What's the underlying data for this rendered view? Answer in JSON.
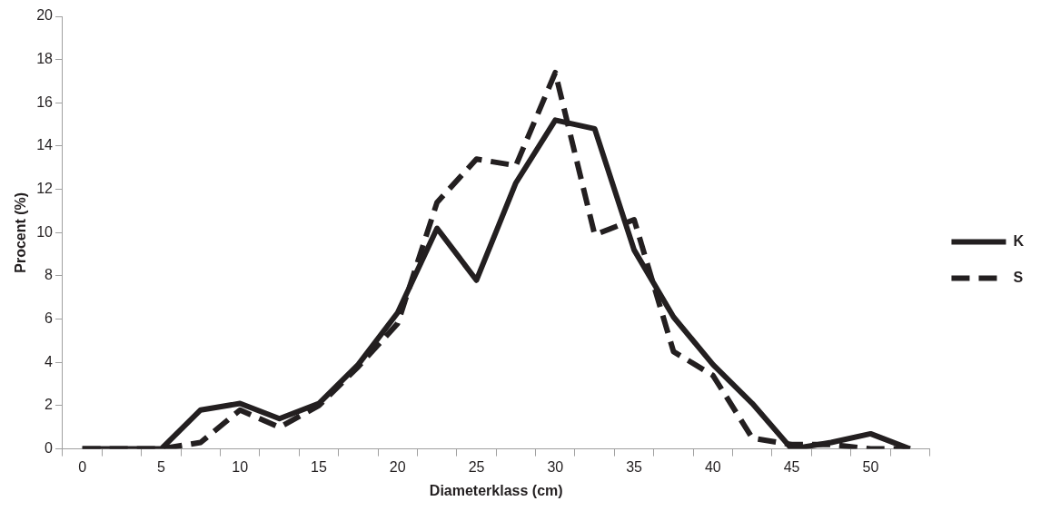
{
  "chart_data": {
    "type": "line",
    "xlabel": "Diameterklass (cm)",
    "ylabel": "Procent (%)",
    "categories": [
      "0",
      null,
      "5",
      null,
      "10",
      null,
      "15",
      null,
      "20",
      null,
      "25",
      null,
      "30",
      null,
      "35",
      null,
      "40",
      null,
      "45",
      null,
      "50",
      null
    ],
    "series": [
      {
        "name": "K",
        "color": "#231f20",
        "line_style": "solid",
        "values": [
          0,
          0,
          0,
          1.8,
          2.1,
          1.4,
          2.1,
          3.9,
          6.3,
          10.2,
          7.8,
          12.3,
          15.2,
          14.8,
          9.2,
          6.1,
          3.9,
          2.1,
          0,
          0.3,
          0.7,
          0
        ]
      },
      {
        "name": "S",
        "color": "#231f20",
        "line_style": "dashed",
        "values": [
          0,
          0,
          0,
          0.3,
          1.8,
          1.0,
          2.0,
          3.8,
          5.8,
          11.4,
          13.4,
          13.1,
          17.4,
          9.9,
          10.6,
          4.5,
          3.4,
          0.5,
          0.2,
          0.2,
          0,
          0
        ]
      }
    ],
    "ylim": [
      0,
      20
    ],
    "yticks": [
      0,
      2,
      4,
      6,
      8,
      10,
      12,
      14,
      16,
      18,
      20
    ],
    "grid": false,
    "legend": "right",
    "marker": "none"
  }
}
